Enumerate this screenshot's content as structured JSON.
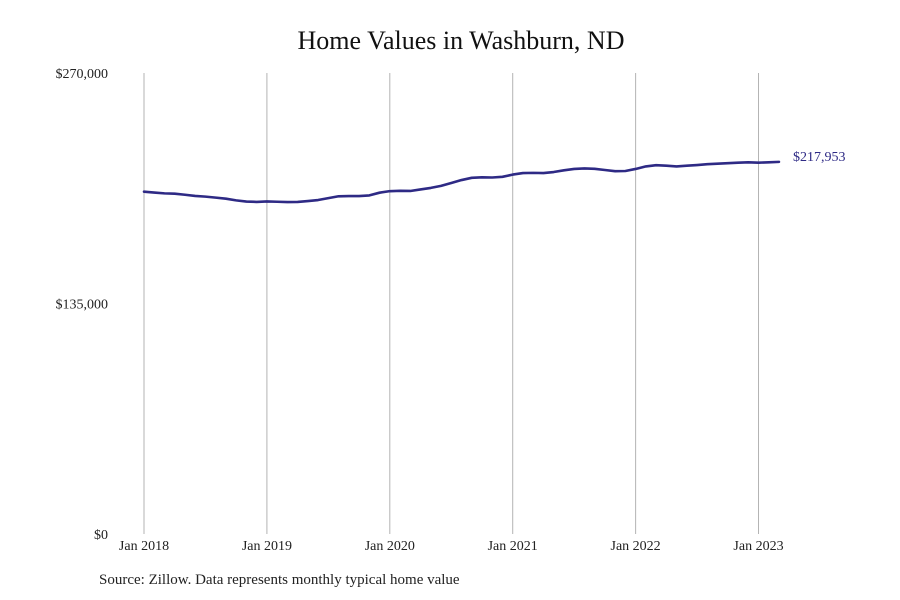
{
  "chart_data": {
    "type": "line",
    "title": "Home Values in Washburn, ND",
    "xlabel": "",
    "ylabel": "",
    "x_ticks": [
      "Jan 2018",
      "Jan 2019",
      "Jan 2020",
      "Jan 2021",
      "Jan 2022",
      "Jan 2023"
    ],
    "y_ticks": [
      "$0",
      "$135,000",
      "$270,000"
    ],
    "ylim": [
      0,
      270000
    ],
    "xlim": [
      "2018-01",
      "2023-03"
    ],
    "grid": "vertical at each January",
    "legend": "none",
    "line_color": "#2e2a85",
    "grid_color": "#b3b3b3",
    "end_label": "$217,953",
    "series": [
      {
        "x": [
          "2018-01",
          "2018-02",
          "2018-03",
          "2018-04",
          "2018-05",
          "2018-06",
          "2018-07",
          "2018-08",
          "2018-09",
          "2018-10",
          "2018-11",
          "2018-12",
          "2019-01",
          "2019-02",
          "2019-03",
          "2019-04",
          "2019-05",
          "2019-06",
          "2019-07",
          "2019-08",
          "2019-09",
          "2019-10",
          "2019-11",
          "2019-12",
          "2020-01",
          "2020-02",
          "2020-03",
          "2020-04",
          "2020-05",
          "2020-06",
          "2020-07",
          "2020-08",
          "2020-09",
          "2020-10",
          "2020-11",
          "2020-12",
          "2021-01",
          "2021-02",
          "2021-03",
          "2021-04",
          "2021-05",
          "2021-06",
          "2021-07",
          "2021-08",
          "2021-09",
          "2021-10",
          "2021-11",
          "2021-12",
          "2022-01",
          "2022-02",
          "2022-03",
          "2022-04",
          "2022-05",
          "2022-06",
          "2022-07",
          "2022-08",
          "2022-09",
          "2022-10",
          "2022-11",
          "2022-12",
          "2023-01",
          "2023-02",
          "2023-03"
        ],
        "values": [
          200500,
          200000,
          199500,
          199300,
          198700,
          198000,
          197600,
          197000,
          196400,
          195400,
          194700,
          194500,
          194800,
          194600,
          194400,
          194500,
          195000,
          195600,
          196700,
          197800,
          197900,
          197900,
          198300,
          199900,
          200800,
          201000,
          200900,
          201800,
          202700,
          203900,
          205600,
          207300,
          208600,
          208900,
          208800,
          209200,
          210500,
          211400,
          211500,
          211400,
          212000,
          213000,
          213800,
          214100,
          213900,
          213200,
          212500,
          212600,
          213800,
          215300,
          216000,
          215700,
          215300,
          215700,
          216100,
          216600,
          216900,
          217200,
          217500,
          217700,
          217500,
          217700,
          217953
        ]
      }
    ]
  },
  "source_note": "Source: Zillow. Data represents monthly typical home value"
}
